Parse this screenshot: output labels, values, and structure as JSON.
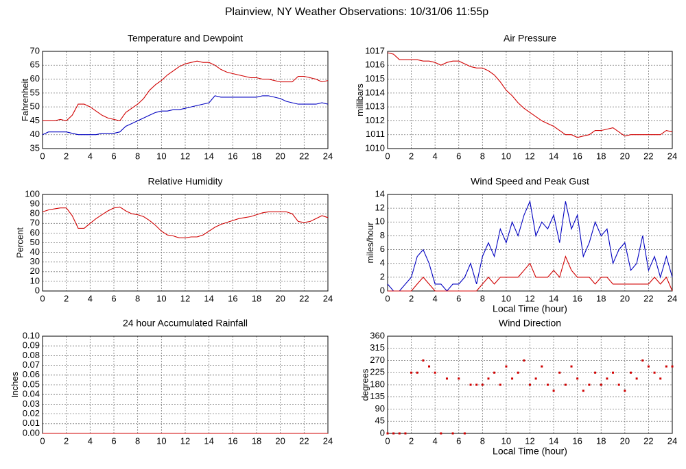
{
  "title": "Plainview, NY Weather Observations: 10/31/06 11:55p",
  "chart_data": [
    {
      "type": "line",
      "title": "Temperature and Dewpoint",
      "ylabel": "Fahrenheit",
      "x": [
        0,
        0.5,
        1,
        1.5,
        2,
        2.5,
        3,
        3.5,
        4,
        4.5,
        5,
        5.5,
        6,
        6.5,
        7,
        7.5,
        8,
        8.5,
        9,
        9.5,
        10,
        10.5,
        11,
        11.5,
        12,
        12.5,
        13,
        13.5,
        14,
        14.5,
        15,
        15.5,
        16,
        16.5,
        17,
        17.5,
        18,
        18.5,
        19,
        19.5,
        20,
        20.5,
        21,
        21.5,
        22,
        22.5,
        23,
        23.5,
        24
      ],
      "series": [
        {
          "color": "#d00000",
          "values": [
            45,
            45,
            45,
            45.5,
            45,
            47,
            51,
            51,
            50,
            48.5,
            47,
            46,
            45.5,
            45,
            48,
            49.5,
            51,
            53,
            56,
            58,
            59.5,
            61.5,
            63,
            64.5,
            65.5,
            66,
            66.5,
            66,
            66,
            65,
            63.5,
            62.5,
            62,
            61.5,
            61,
            60.5,
            60.5,
            60,
            60,
            59.5,
            59,
            59,
            59,
            61,
            61,
            60.5,
            60,
            59,
            59.5
          ]
        },
        {
          "color": "#0000c0",
          "values": [
            40,
            41,
            41,
            41,
            41,
            40.5,
            40,
            40,
            40,
            40,
            40.5,
            40.5,
            40.5,
            41,
            43,
            44,
            45,
            46,
            47,
            48,
            48.5,
            48.5,
            49,
            49,
            49.5,
            50,
            50.5,
            51,
            51.5,
            54,
            53.5,
            53.5,
            53.5,
            53.5,
            53.5,
            53.5,
            53.5,
            54,
            54,
            53.5,
            53,
            52,
            51.5,
            51,
            51,
            51,
            51,
            51.5,
            51
          ]
        }
      ],
      "xlim": [
        0,
        24
      ],
      "xticks": [
        0,
        2,
        4,
        6,
        8,
        10,
        12,
        14,
        16,
        18,
        20,
        22,
        24
      ],
      "ylim": [
        35,
        70
      ],
      "yticks": [
        35,
        40,
        45,
        50,
        55,
        60,
        65,
        70
      ],
      "grid": true
    },
    {
      "type": "line",
      "title": "Air Pressure",
      "ylabel": "millibars",
      "x": [
        0,
        0.5,
        1,
        1.5,
        2,
        2.5,
        3,
        3.5,
        4,
        4.5,
        5,
        5.5,
        6,
        6.5,
        7,
        7.5,
        8,
        8.5,
        9,
        9.5,
        10,
        10.5,
        11,
        11.5,
        12,
        12.5,
        13,
        13.5,
        14,
        14.5,
        15,
        15.5,
        16,
        16.5,
        17,
        17.5,
        18,
        18.5,
        19,
        19.5,
        20,
        20.5,
        21,
        21.5,
        22,
        22.5,
        23,
        23.5,
        24
      ],
      "series": [
        {
          "color": "#d00000",
          "values": [
            1016.9,
            1016.8,
            1016.4,
            1016.4,
            1016.4,
            1016.4,
            1016.3,
            1016.3,
            1016.2,
            1016.0,
            1016.2,
            1016.3,
            1016.3,
            1016.1,
            1015.9,
            1015.8,
            1015.8,
            1015.6,
            1015.3,
            1014.8,
            1014.2,
            1013.8,
            1013.3,
            1012.9,
            1012.6,
            1012.3,
            1012.0,
            1011.8,
            1011.6,
            1011.3,
            1011.0,
            1011.0,
            1010.8,
            1010.9,
            1011.0,
            1011.3,
            1011.3,
            1011.4,
            1011.5,
            1011.2,
            1010.9,
            1011.0,
            1011.0,
            1011.0,
            1011.0,
            1011.0,
            1011.0,
            1011.3,
            1011.2
          ]
        }
      ],
      "xlim": [
        0,
        24
      ],
      "xticks": [
        0,
        2,
        4,
        6,
        8,
        10,
        12,
        14,
        16,
        18,
        20,
        22,
        24
      ],
      "ylim": [
        1010,
        1017
      ],
      "yticks": [
        1010,
        1011,
        1012,
        1013,
        1014,
        1015,
        1016,
        1017
      ],
      "grid": true
    },
    {
      "type": "line",
      "title": "Relative Humidity",
      "ylabel": "Percent",
      "x": [
        0,
        0.5,
        1,
        1.5,
        2,
        2.5,
        3,
        3.5,
        4,
        4.5,
        5,
        5.5,
        6,
        6.5,
        7,
        7.5,
        8,
        8.5,
        9,
        9.5,
        10,
        10.5,
        11,
        11.5,
        12,
        12.5,
        13,
        13.5,
        14,
        14.5,
        15,
        15.5,
        16,
        16.5,
        17,
        17.5,
        18,
        18.5,
        19,
        19.5,
        20,
        20.5,
        21,
        21.5,
        22,
        22.5,
        23,
        23.5,
        24
      ],
      "series": [
        {
          "color": "#d00000",
          "values": [
            82,
            84,
            85,
            86,
            86,
            78,
            65,
            65,
            70,
            75,
            79,
            83,
            86,
            87,
            83,
            80,
            79,
            77,
            73,
            68,
            62,
            58,
            57,
            55,
            55,
            56,
            56,
            58,
            62,
            66,
            69,
            71,
            73,
            75,
            76,
            77,
            79,
            81,
            82,
            82,
            82,
            82,
            80,
            72,
            71,
            72,
            75,
            78,
            76
          ]
        }
      ],
      "xlim": [
        0,
        24
      ],
      "xticks": [
        0,
        2,
        4,
        6,
        8,
        10,
        12,
        14,
        16,
        18,
        20,
        22,
        24
      ],
      "ylim": [
        0,
        100
      ],
      "yticks": [
        0,
        10,
        20,
        30,
        40,
        50,
        60,
        70,
        80,
        90,
        100
      ],
      "grid": true
    },
    {
      "type": "line",
      "title": "Wind Speed and Peak Gust",
      "ylabel": "miles/hour",
      "xlabel": "Local Time (hour)",
      "x": [
        0,
        0.5,
        1,
        1.5,
        2,
        2.5,
        3,
        3.5,
        4,
        4.5,
        5,
        5.5,
        6,
        6.5,
        7,
        7.5,
        8,
        8.5,
        9,
        9.5,
        10,
        10.5,
        11,
        11.5,
        12,
        12.5,
        13,
        13.5,
        14,
        14.5,
        15,
        15.5,
        16,
        16.5,
        17,
        17.5,
        18,
        18.5,
        19,
        19.5,
        20,
        20.5,
        21,
        21.5,
        22,
        22.5,
        23,
        23.5,
        24
      ],
      "series": [
        {
          "color": "#0000c0",
          "values": [
            1,
            0,
            0,
            1,
            2,
            5,
            6,
            4,
            1,
            1,
            0,
            1,
            1,
            2,
            4,
            1,
            5,
            7,
            5,
            9,
            7,
            10,
            8,
            11,
            13,
            8,
            10,
            9,
            11,
            7,
            13,
            9,
            11,
            5,
            7,
            10,
            8,
            9,
            4,
            6,
            7,
            3,
            4,
            8,
            3,
            5,
            2,
            5,
            2
          ]
        },
        {
          "color": "#d00000",
          "values": [
            0,
            0,
            0,
            0,
            0,
            1,
            2,
            1,
            0,
            0,
            0,
            0,
            0,
            0,
            0,
            0,
            1,
            2,
            1,
            2,
            2,
            2,
            2,
            3,
            4,
            2,
            2,
            2,
            3,
            2,
            5,
            3,
            2,
            2,
            2,
            1,
            2,
            2,
            1,
            1,
            1,
            1,
            1,
            1,
            1,
            2,
            1,
            2,
            0
          ]
        }
      ],
      "xlim": [
        0,
        24
      ],
      "xticks": [
        0,
        2,
        4,
        6,
        8,
        10,
        12,
        14,
        16,
        18,
        20,
        22,
        24
      ],
      "ylim": [
        0,
        14
      ],
      "yticks": [
        0,
        2,
        4,
        6,
        8,
        10,
        12,
        14
      ],
      "grid": true
    },
    {
      "type": "line",
      "title": "24 hour Accumulated Rainfall",
      "ylabel": "Inches",
      "x": [
        0,
        24
      ],
      "series": [
        {
          "color": "#d00000",
          "values": [
            0,
            0
          ]
        }
      ],
      "xlim": [
        0,
        24
      ],
      "xticks": [
        0,
        2,
        4,
        6,
        8,
        10,
        12,
        14,
        16,
        18,
        20,
        22,
        24
      ],
      "ylim": [
        0,
        0.1
      ],
      "yticks": [
        {
          "value": 0,
          "label": "0.00"
        },
        {
          "value": 0.01,
          "label": "0.01"
        },
        {
          "value": 0.02,
          "label": "0.02"
        },
        {
          "value": 0.03,
          "label": "0.03"
        },
        {
          "value": 0.04,
          "label": "0.04"
        },
        {
          "value": 0.05,
          "label": "0.05"
        },
        {
          "value": 0.06,
          "label": "0.06"
        },
        {
          "value": 0.07,
          "label": "0.07"
        },
        {
          "value": 0.08,
          "label": "0.08"
        },
        {
          "value": 0.09,
          "label": "0.09"
        },
        {
          "value": 0.1,
          "label": "0.10"
        }
      ],
      "grid": true
    },
    {
      "type": "scatter",
      "title": "Wind Direction",
      "ylabel": "degrees",
      "xlabel": "Local Time (hour)",
      "x": [
        0,
        0.5,
        1,
        1.5,
        2,
        2.5,
        3,
        3.5,
        4,
        4.5,
        5,
        5.5,
        6,
        6.5,
        7,
        7.5,
        8,
        8.5,
        9,
        9.5,
        10,
        10.5,
        11,
        11.5,
        12,
        12.5,
        13,
        13.5,
        14,
        14.5,
        15,
        15.5,
        16,
        16.5,
        17,
        17.5,
        18,
        18.5,
        19,
        19.5,
        20,
        20.5,
        21,
        21.5,
        22,
        22.5,
        23,
        23.5,
        24
      ],
      "series": [
        {
          "color": "#d00000",
          "values": [
            0,
            0,
            0,
            0,
            225,
            225,
            270,
            248,
            225,
            0,
            203,
            0,
            203,
            0,
            180,
            180,
            180,
            203,
            225,
            180,
            248,
            203,
            225,
            270,
            180,
            203,
            248,
            180,
            158,
            225,
            180,
            248,
            203,
            158,
            180,
            225,
            180,
            203,
            225,
            180,
            158,
            225,
            203,
            270,
            248,
            225,
            203,
            248,
            248
          ]
        }
      ],
      "xlim": [
        0,
        24
      ],
      "xticks": [
        0,
        2,
        4,
        6,
        8,
        10,
        12,
        14,
        16,
        18,
        20,
        22,
        24
      ],
      "ylim": [
        0,
        360
      ],
      "yticks": [
        0,
        45,
        90,
        135,
        180,
        225,
        270,
        315,
        360
      ],
      "grid": true
    }
  ]
}
